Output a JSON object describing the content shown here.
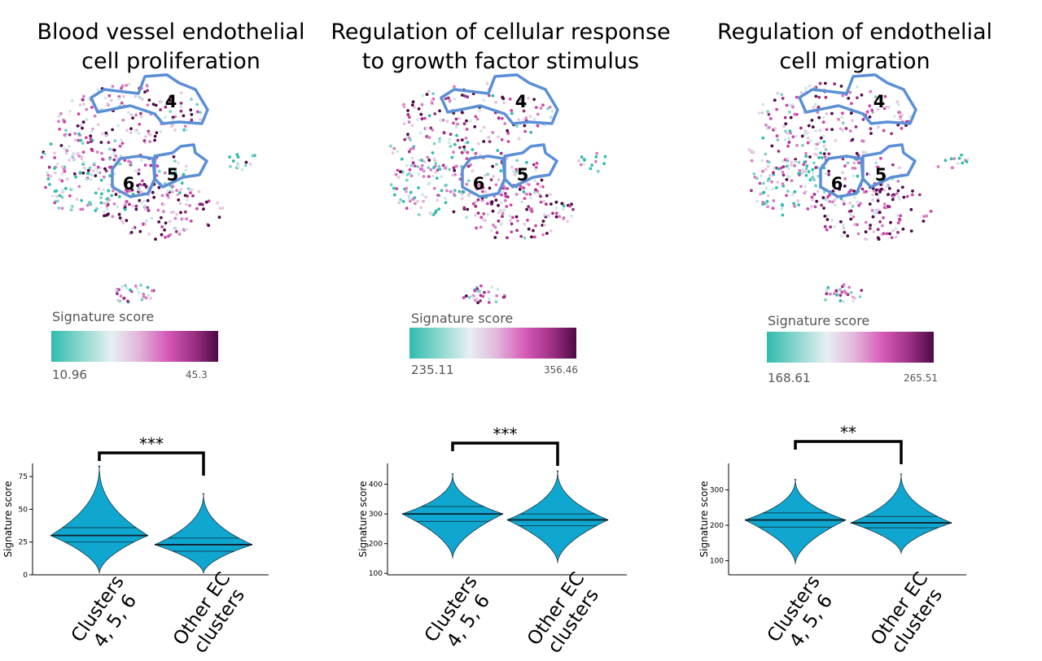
{
  "panels": [
    {
      "title": "Blood vessel endothelial cell proliferation",
      "colorbar": {
        "label": "Signature score",
        "min": "10.96",
        "max": "45.3"
      },
      "clusters": [
        "4",
        "5",
        "6"
      ],
      "chart_data": {
        "type": "violin",
        "ylabel": "Signature score",
        "ylim": [
          0,
          85
        ],
        "yticks": [
          0,
          25,
          50,
          75
        ],
        "categories": [
          "Clusters 4, 5, 6",
          "Other EC clusters"
        ],
        "series": [
          {
            "median": 30,
            "q1": 25,
            "q3": 36,
            "min": 1,
            "max": 83
          },
          {
            "median": 23,
            "q1": 18,
            "q3": 28,
            "min": 1,
            "max": 62
          }
        ],
        "significance": "***"
      }
    },
    {
      "title": "Regulation of cellular response to growth factor stimulus",
      "colorbar": {
        "label": "Signature score",
        "min": "235.11",
        "max": "356.46"
      },
      "clusters": [
        "4",
        "5",
        "6"
      ],
      "chart_data": {
        "type": "violin",
        "ylabel": "Signature score",
        "ylim": [
          95,
          470
        ],
        "yticks": [
          100,
          200,
          300,
          400
        ],
        "categories": [
          "Clusters 4, 5, 6",
          "Other EC clusters"
        ],
        "series": [
          {
            "median": 300,
            "q1": 275,
            "q3": 325,
            "min": 150,
            "max": 435
          },
          {
            "median": 280,
            "q1": 260,
            "q3": 300,
            "min": 135,
            "max": 445
          }
        ],
        "significance": "***"
      }
    },
    {
      "title": "Regulation of endothelial cell migration",
      "colorbar": {
        "label": "Signature score",
        "min": "168.61",
        "max": "265.51"
      },
      "clusters": [
        "4",
        "5",
        "6"
      ],
      "chart_data": {
        "type": "violin",
        "ylabel": "Signature score",
        "ylim": [
          60,
          375
        ],
        "yticks": [
          100,
          200,
          300
        ],
        "categories": [
          "Clusters 4, 5, 6",
          "Other EC clusters"
        ],
        "series": [
          {
            "median": 215,
            "q1": 195,
            "q3": 235,
            "min": 90,
            "max": 330
          },
          {
            "median": 207,
            "q1": 193,
            "q3": 225,
            "min": 120,
            "max": 345
          }
        ],
        "significance": "**"
      }
    }
  ],
  "colors": {
    "violin_fill": "#0fa6cf",
    "cluster_outline": "#5b8fd6",
    "teal": "#2fbcae",
    "magenta": "#cc44aa",
    "dark_purple": "#4d0a45"
  }
}
